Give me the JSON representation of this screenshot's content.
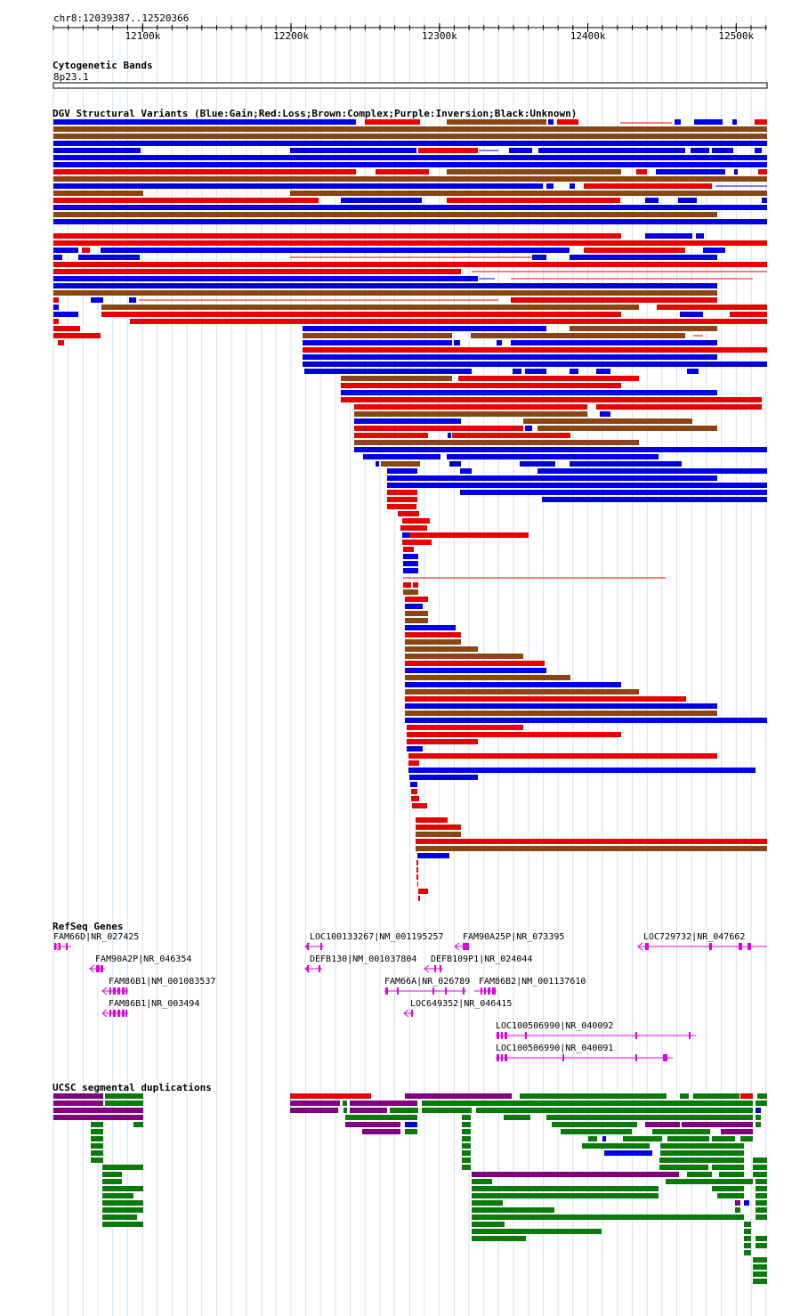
{
  "location": "chr8:12039387..12520366",
  "ruler": {
    "ticks": [
      {
        "pos": 12100000,
        "label": "12100k"
      },
      {
        "pos": 12200000,
        "label": "12200k"
      },
      {
        "pos": 12300000,
        "label": "12300k"
      },
      {
        "pos": 12400000,
        "label": "12400k"
      },
      {
        "pos": 12500000,
        "label": "12500k"
      }
    ]
  },
  "tracks": {
    "cytoband": {
      "title": "Cytogenetic Bands",
      "band": "8p23.1"
    },
    "dgv": {
      "title": "DGV Structural Variants (Blue:Gain;Red:Loss;Brown:Complex;Purple:Inversion;Black:Unknown)"
    },
    "refseq": {
      "title": "RefSeq Genes"
    },
    "segdup": {
      "title": "UCSC segmental duplications"
    }
  },
  "genes": [
    {
      "label": "FAM66D|NR_027425"
    },
    {
      "label": "FAM90A2P|NR_046354"
    },
    {
      "label": "FAM86B1|NM_001083537"
    },
    {
      "label": "FAM86B1|NR_003494"
    },
    {
      "label": "LOC100133267|NM_001195257"
    },
    {
      "label": "DEFB130|NM_001037804"
    },
    {
      "label": "FAM90A25P|NR_073395"
    },
    {
      "label": "DEFB109P1|NR_024044"
    },
    {
      "label": "FAM66A|NR_026789"
    },
    {
      "label": "FAM86B2|NM_001137610"
    },
    {
      "label": "LOC649352|NR_046415"
    },
    {
      "label": "LOC729732|NR_047662"
    },
    {
      "label": "LOC100506990|NR_040092"
    },
    {
      "label": "LOC100506990|NR_040091"
    }
  ],
  "colors": {
    "gain": "#0000e0",
    "loss": "#e80000",
    "complex": "#8b4513",
    "inversion": "#800080",
    "segdup_green": "#0a7a0a",
    "gene": "#e000e0",
    "grid": "#cfe3f5"
  }
}
